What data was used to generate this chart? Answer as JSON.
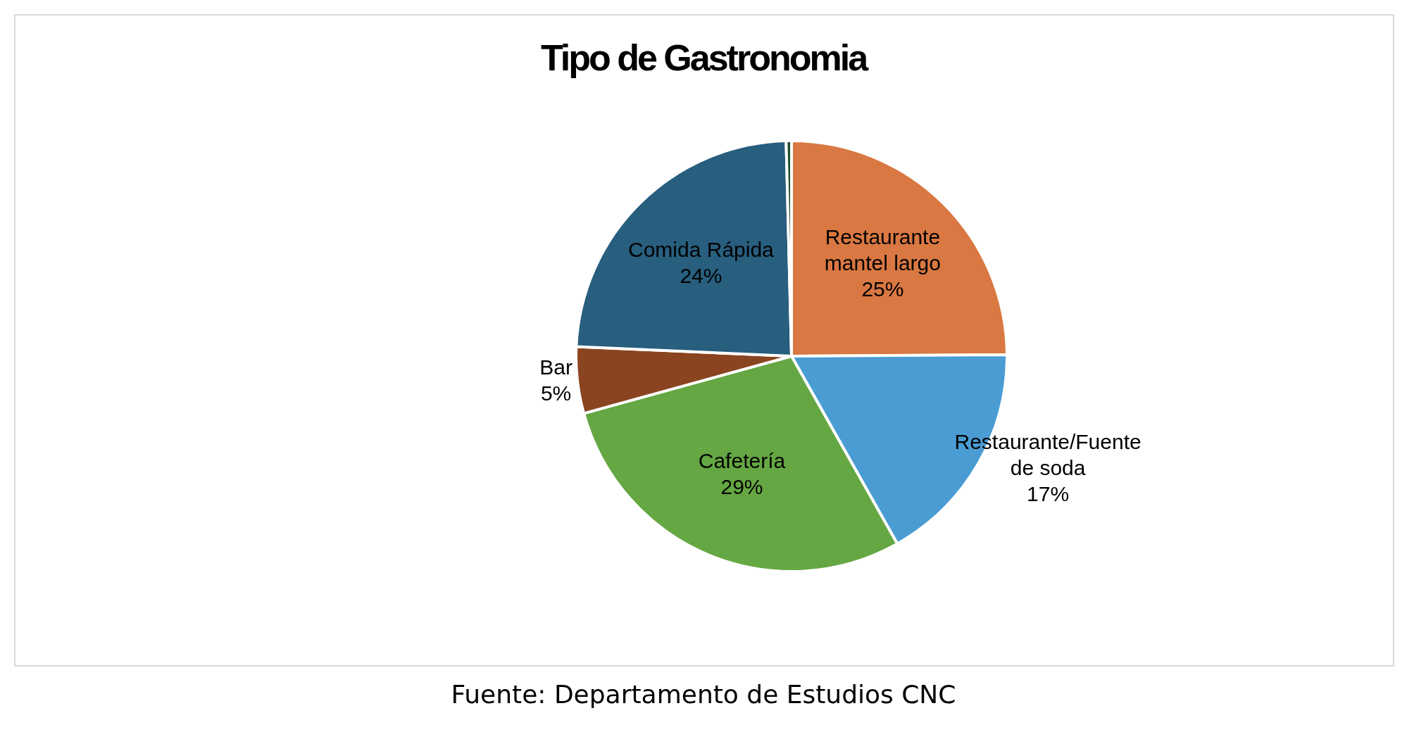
{
  "chart_data": {
    "type": "pie",
    "title": "Tipo de Gastronomia",
    "categories": [
      "Restaurante mantel largo",
      "Restaurante/Fuente de soda",
      "Cafetería",
      "Bar",
      "Comida Rápida",
      null
    ],
    "values": [
      25,
      17,
      29,
      5,
      24,
      0.4
    ],
    "colors": [
      "#d97842",
      "#4a9cd3",
      "#65a743",
      "#8b4420",
      "#285e7e",
      "#1f4d2a"
    ],
    "value_labels": [
      "25%",
      "17%",
      "29%",
      "5%",
      "24%",
      null
    ],
    "legend": false,
    "annotations": [
      "Fuente: Departamento de Estudios CNC"
    ]
  }
}
